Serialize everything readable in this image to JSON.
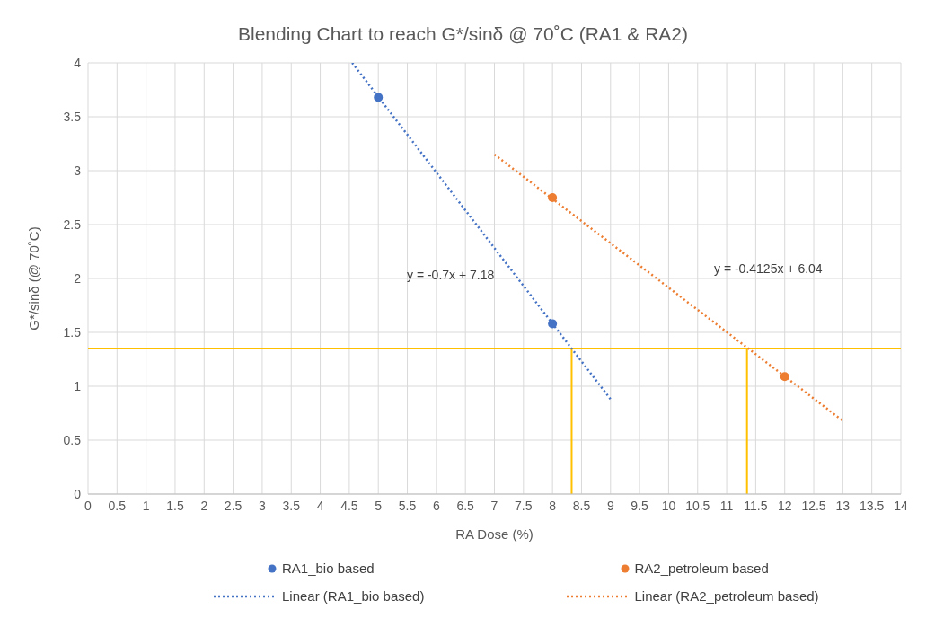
{
  "chart_data": {
    "type": "scatter",
    "title": "Blending Chart to reach G*/sinδ @ 70˚C (RA1 & RA2)",
    "xlabel": "RA Dose (%)",
    "ylabel": "G*/sinδ (@ 70˚C)",
    "xlim": [
      0,
      14
    ],
    "xticks": [
      0,
      0.5,
      1,
      1.5,
      2,
      2.5,
      3,
      3.5,
      4,
      4.5,
      5,
      5.5,
      6,
      6.5,
      7,
      7.5,
      8,
      8.5,
      9,
      9.5,
      10,
      10.5,
      11,
      11.5,
      12,
      12.5,
      13,
      13.5,
      14
    ],
    "ylim": [
      0,
      4
    ],
    "yticks": [
      0,
      0.5,
      1,
      1.5,
      2,
      2.5,
      3,
      3.5,
      4
    ],
    "grid": true,
    "legend": "bottom",
    "series": [
      {
        "name": "RA1_bio based",
        "type": "scatter",
        "marker": "circle",
        "color": "#4472c4",
        "x": [
          5,
          8
        ],
        "values": [
          3.68,
          1.58
        ]
      },
      {
        "name": "RA2_petroleum based",
        "type": "scatter",
        "marker": "circle",
        "color": "#ed7d31",
        "x": [
          8,
          12
        ],
        "values": [
          2.75,
          1.09
        ]
      },
      {
        "name": "Linear (RA1_bio based)",
        "type": "line",
        "marker": "none",
        "line_style": "dotted",
        "color": "#4472c4",
        "x": [
          4.55,
          9
        ],
        "values": [
          4.0,
          0.88
        ]
      },
      {
        "name": "Linear (RA2_petroleum based)",
        "type": "line",
        "marker": "none",
        "line_style": "dotted",
        "color": "#ed7d31",
        "x": [
          7,
          13
        ],
        "values": [
          3.15,
          0.68
        ]
      }
    ],
    "ref_lines": [
      {
        "axis": "y",
        "value": 1.35,
        "color": "#ffc000"
      },
      {
        "axis": "x",
        "value": 8.33,
        "color": "#ffc000"
      },
      {
        "axis": "x",
        "value": 11.35,
        "color": "#ffc000"
      }
    ],
    "annotations": [
      "y = -0.7x + 7.18",
      "y = -0.4125x + 6.04"
    ]
  }
}
